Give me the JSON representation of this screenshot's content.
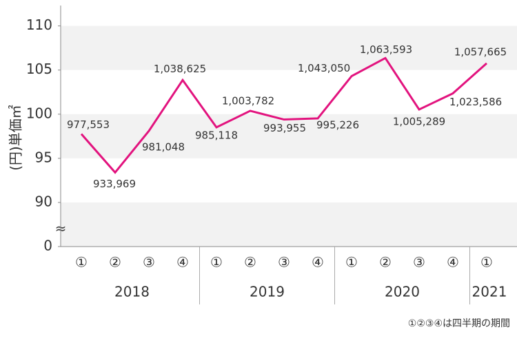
{
  "chart_data": {
    "type": "line",
    "y_label": "(円)単価㎡",
    "categories": [
      "①",
      "②",
      "③",
      "④",
      "①",
      "②",
      "③",
      "④",
      "①",
      "②",
      "③",
      "④",
      "①"
    ],
    "years": [
      "2018",
      "2019",
      "2020",
      "2021"
    ],
    "series": [
      {
        "name": "単価",
        "color": "#e2137e",
        "values": [
          97.7553,
          93.3969,
          98.1048,
          103.8625,
          98.5118,
          100.3782,
          99.3955,
          99.5226,
          104.305,
          106.3593,
          100.5289,
          102.3586,
          105.7665
        ],
        "value_labels": [
          "977,553",
          "933,969",
          "981,048",
          "1,038,625",
          "985,118",
          "1,003,782",
          "993,955",
          "995,226",
          "1,043,050",
          "1,063,593",
          "1,005,289",
          "1,023,586",
          "1,057,665"
        ]
      }
    ],
    "ylim": [
      85,
      112
    ],
    "yticks": [
      0,
      90,
      95,
      100,
      105,
      110
    ],
    "axis_break": true,
    "break_label": "≈",
    "note": "①②③④は四半期の期間"
  }
}
